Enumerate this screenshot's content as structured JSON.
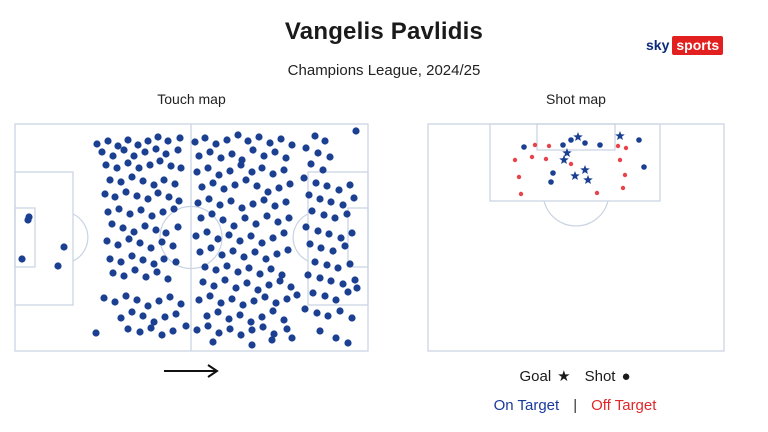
{
  "header": {
    "title": "Vangelis Pavlidis",
    "subtitle": "Champions League, 2024/25"
  },
  "brand": {
    "sky": "sky",
    "sports": "sports"
  },
  "panels": {
    "touch_label": "Touch map",
    "shot_label": "Shot map"
  },
  "legend": {
    "goal_label": "Goal",
    "goal_symbol": "★",
    "shot_label": "Shot",
    "shot_symbol": "●",
    "on_target": "On Target",
    "separator": "|",
    "off_target": "Off Target"
  },
  "colors": {
    "touch": "#1b3f91",
    "on_target": "#1b3f91",
    "off_target": "#e8434a",
    "pitch_lines": "#c8d3e2",
    "brand_red": "#e1201f"
  },
  "touches": [
    [
      97,
      144
    ],
    [
      108,
      141
    ],
    [
      118,
      146
    ],
    [
      128,
      140
    ],
    [
      138,
      145
    ],
    [
      148,
      141
    ],
    [
      158,
      137
    ],
    [
      168,
      141
    ],
    [
      180,
      138
    ],
    [
      102,
      152
    ],
    [
      113,
      156
    ],
    [
      124,
      150
    ],
    [
      134,
      156
    ],
    [
      145,
      152
    ],
    [
      156,
      149
    ],
    [
      166,
      154
    ],
    [
      178,
      150
    ],
    [
      106,
      165
    ],
    [
      117,
      168
    ],
    [
      128,
      163
    ],
    [
      139,
      168
    ],
    [
      150,
      165
    ],
    [
      160,
      161
    ],
    [
      171,
      166
    ],
    [
      181,
      168
    ],
    [
      110,
      180
    ],
    [
      121,
      182
    ],
    [
      132,
      177
    ],
    [
      143,
      181
    ],
    [
      154,
      185
    ],
    [
      164,
      180
    ],
    [
      175,
      184
    ],
    [
      105,
      194
    ],
    [
      115,
      197
    ],
    [
      126,
      192
    ],
    [
      137,
      196
    ],
    [
      148,
      199
    ],
    [
      158,
      193
    ],
    [
      169,
      197
    ],
    [
      179,
      201
    ],
    [
      108,
      212
    ],
    [
      119,
      209
    ],
    [
      130,
      214
    ],
    [
      141,
      210
    ],
    [
      152,
      216
    ],
    [
      163,
      212
    ],
    [
      174,
      209
    ],
    [
      112,
      224
    ],
    [
      123,
      228
    ],
    [
      134,
      232
    ],
    [
      145,
      226
    ],
    [
      156,
      230
    ],
    [
      166,
      233
    ],
    [
      178,
      227
    ],
    [
      107,
      241
    ],
    [
      118,
      245
    ],
    [
      129,
      239
    ],
    [
      140,
      243
    ],
    [
      151,
      248
    ],
    [
      162,
      242
    ],
    [
      173,
      246
    ],
    [
      110,
      259
    ],
    [
      121,
      262
    ],
    [
      132,
      256
    ],
    [
      143,
      260
    ],
    [
      154,
      264
    ],
    [
      164,
      259
    ],
    [
      176,
      262
    ],
    [
      113,
      273
    ],
    [
      124,
      276
    ],
    [
      135,
      270
    ],
    [
      146,
      277
    ],
    [
      157,
      272
    ],
    [
      168,
      279
    ],
    [
      104,
      298
    ],
    [
      115,
      302
    ],
    [
      126,
      296
    ],
    [
      137,
      300
    ],
    [
      148,
      306
    ],
    [
      159,
      301
    ],
    [
      170,
      297
    ],
    [
      181,
      304
    ],
    [
      121,
      318
    ],
    [
      132,
      312
    ],
    [
      143,
      316
    ],
    [
      154,
      322
    ],
    [
      165,
      317
    ],
    [
      176,
      314
    ],
    [
      96,
      333
    ],
    [
      128,
      329
    ],
    [
      140,
      332
    ],
    [
      151,
      328
    ],
    [
      162,
      335
    ],
    [
      173,
      331
    ],
    [
      186,
      326
    ],
    [
      195,
      142
    ],
    [
      205,
      138
    ],
    [
      216,
      144
    ],
    [
      227,
      140
    ],
    [
      238,
      135
    ],
    [
      248,
      141
    ],
    [
      259,
      137
    ],
    [
      270,
      143
    ],
    [
      281,
      139
    ],
    [
      292,
      145
    ],
    [
      199,
      156
    ],
    [
      210,
      152
    ],
    [
      221,
      158
    ],
    [
      232,
      154
    ],
    [
      242,
      160
    ],
    [
      253,
      150
    ],
    [
      264,
      156
    ],
    [
      275,
      152
    ],
    [
      286,
      158
    ],
    [
      197,
      172
    ],
    [
      208,
      168
    ],
    [
      219,
      175
    ],
    [
      230,
      171
    ],
    [
      241,
      165
    ],
    [
      252,
      172
    ],
    [
      262,
      168
    ],
    [
      273,
      174
    ],
    [
      284,
      170
    ],
    [
      202,
      187
    ],
    [
      213,
      183
    ],
    [
      224,
      189
    ],
    [
      235,
      185
    ],
    [
      246,
      180
    ],
    [
      257,
      186
    ],
    [
      268,
      192
    ],
    [
      279,
      188
    ],
    [
      290,
      184
    ],
    [
      198,
      203
    ],
    [
      209,
      199
    ],
    [
      220,
      205
    ],
    [
      231,
      201
    ],
    [
      242,
      208
    ],
    [
      253,
      204
    ],
    [
      264,
      200
    ],
    [
      275,
      206
    ],
    [
      286,
      202
    ],
    [
      201,
      218
    ],
    [
      212,
      214
    ],
    [
      223,
      220
    ],
    [
      234,
      226
    ],
    [
      245,
      218
    ],
    [
      256,
      224
    ],
    [
      267,
      216
    ],
    [
      278,
      222
    ],
    [
      289,
      218
    ],
    [
      196,
      236
    ],
    [
      207,
      232
    ],
    [
      218,
      239
    ],
    [
      229,
      235
    ],
    [
      240,
      241
    ],
    [
      251,
      236
    ],
    [
      262,
      243
    ],
    [
      273,
      238
    ],
    [
      284,
      233
    ],
    [
      200,
      252
    ],
    [
      211,
      248
    ],
    [
      222,
      255
    ],
    [
      233,
      251
    ],
    [
      244,
      257
    ],
    [
      255,
      252
    ],
    [
      266,
      259
    ],
    [
      277,
      254
    ],
    [
      288,
      250
    ],
    [
      205,
      267
    ],
    [
      216,
      270
    ],
    [
      227,
      266
    ],
    [
      238,
      272
    ],
    [
      249,
      268
    ],
    [
      260,
      274
    ],
    [
      271,
      269
    ],
    [
      282,
      275
    ],
    [
      203,
      282
    ],
    [
      214,
      286
    ],
    [
      225,
      280
    ],
    [
      236,
      288
    ],
    [
      247,
      283
    ],
    [
      258,
      290
    ],
    [
      269,
      285
    ],
    [
      280,
      281
    ],
    [
      291,
      287
    ],
    [
      199,
      300
    ],
    [
      210,
      296
    ],
    [
      221,
      303
    ],
    [
      232,
      299
    ],
    [
      243,
      305
    ],
    [
      254,
      301
    ],
    [
      265,
      297
    ],
    [
      276,
      303
    ],
    [
      287,
      299
    ],
    [
      207,
      316
    ],
    [
      218,
      312
    ],
    [
      229,
      319
    ],
    [
      240,
      315
    ],
    [
      251,
      322
    ],
    [
      262,
      317
    ],
    [
      273,
      311
    ],
    [
      284,
      320
    ],
    [
      297,
      295
    ],
    [
      197,
      330
    ],
    [
      208,
      326
    ],
    [
      219,
      333
    ],
    [
      230,
      329
    ],
    [
      241,
      335
    ],
    [
      252,
      330
    ],
    [
      263,
      327
    ],
    [
      274,
      334
    ],
    [
      287,
      329
    ],
    [
      213,
      342
    ],
    [
      252,
      345
    ],
    [
      272,
      340
    ],
    [
      292,
      338
    ],
    [
      315,
      136
    ],
    [
      325,
      141
    ],
    [
      306,
      148
    ],
    [
      318,
      153
    ],
    [
      330,
      157
    ],
    [
      311,
      164
    ],
    [
      323,
      170
    ],
    [
      304,
      178
    ],
    [
      316,
      183
    ],
    [
      327,
      186
    ],
    [
      339,
      190
    ],
    [
      350,
      185
    ],
    [
      309,
      195
    ],
    [
      320,
      199
    ],
    [
      331,
      202
    ],
    [
      343,
      205
    ],
    [
      354,
      198
    ],
    [
      312,
      211
    ],
    [
      324,
      215
    ],
    [
      335,
      218
    ],
    [
      347,
      214
    ],
    [
      306,
      227
    ],
    [
      318,
      231
    ],
    [
      329,
      234
    ],
    [
      341,
      238
    ],
    [
      352,
      233
    ],
    [
      310,
      244
    ],
    [
      321,
      248
    ],
    [
      333,
      251
    ],
    [
      345,
      246
    ],
    [
      315,
      262
    ],
    [
      327,
      265
    ],
    [
      338,
      268
    ],
    [
      350,
      264
    ],
    [
      308,
      275
    ],
    [
      320,
      278
    ],
    [
      331,
      281
    ],
    [
      343,
      284
    ],
    [
      355,
      280
    ],
    [
      313,
      293
    ],
    [
      325,
      296
    ],
    [
      336,
      300
    ],
    [
      348,
      292
    ],
    [
      357,
      288
    ],
    [
      305,
      309
    ],
    [
      317,
      313
    ],
    [
      328,
      316
    ],
    [
      340,
      311
    ],
    [
      352,
      318
    ],
    [
      320,
      331
    ],
    [
      336,
      338
    ],
    [
      348,
      343
    ],
    [
      356,
      131
    ],
    [
      29,
      217
    ],
    [
      28,
      220
    ],
    [
      64,
      247
    ],
    [
      22,
      259
    ],
    [
      58,
      266
    ]
  ],
  "shots": [
    {
      "x": 524,
      "y": 147,
      "goal": false,
      "on_target": true
    },
    {
      "x": 535,
      "y": 145,
      "goal": false,
      "on_target": false
    },
    {
      "x": 549,
      "y": 146,
      "goal": false,
      "on_target": false
    },
    {
      "x": 563,
      "y": 145,
      "goal": false,
      "on_target": true
    },
    {
      "x": 571,
      "y": 140,
      "goal": false,
      "on_target": true
    },
    {
      "x": 578,
      "y": 137,
      "goal": true,
      "on_target": true
    },
    {
      "x": 585,
      "y": 143,
      "goal": false,
      "on_target": true
    },
    {
      "x": 600,
      "y": 145,
      "goal": false,
      "on_target": true
    },
    {
      "x": 620,
      "y": 136,
      "goal": true,
      "on_target": true
    },
    {
      "x": 639,
      "y": 140,
      "goal": false,
      "on_target": true
    },
    {
      "x": 618,
      "y": 146,
      "goal": false,
      "on_target": false
    },
    {
      "x": 567,
      "y": 153,
      "goal": true,
      "on_target": true
    },
    {
      "x": 564,
      "y": 160,
      "goal": true,
      "on_target": true
    },
    {
      "x": 571,
      "y": 164,
      "goal": false,
      "on_target": false
    },
    {
      "x": 546,
      "y": 159,
      "goal": false,
      "on_target": false
    },
    {
      "x": 532,
      "y": 157,
      "goal": false,
      "on_target": false
    },
    {
      "x": 515,
      "y": 160,
      "goal": false,
      "on_target": false
    },
    {
      "x": 644,
      "y": 167,
      "goal": false,
      "on_target": true
    },
    {
      "x": 620,
      "y": 160,
      "goal": false,
      "on_target": false
    },
    {
      "x": 585,
      "y": 170,
      "goal": true,
      "on_target": true
    },
    {
      "x": 575,
      "y": 176,
      "goal": true,
      "on_target": true
    },
    {
      "x": 588,
      "y": 180,
      "goal": true,
      "on_target": true
    },
    {
      "x": 553,
      "y": 173,
      "goal": false,
      "on_target": true
    },
    {
      "x": 551,
      "y": 182,
      "goal": false,
      "on_target": true
    },
    {
      "x": 519,
      "y": 177,
      "goal": false,
      "on_target": false
    },
    {
      "x": 625,
      "y": 175,
      "goal": false,
      "on_target": false
    },
    {
      "x": 623,
      "y": 188,
      "goal": false,
      "on_target": false
    },
    {
      "x": 597,
      "y": 193,
      "goal": false,
      "on_target": false
    },
    {
      "x": 521,
      "y": 194,
      "goal": false,
      "on_target": false
    },
    {
      "x": 626,
      "y": 148,
      "goal": false,
      "on_target": false
    }
  ]
}
